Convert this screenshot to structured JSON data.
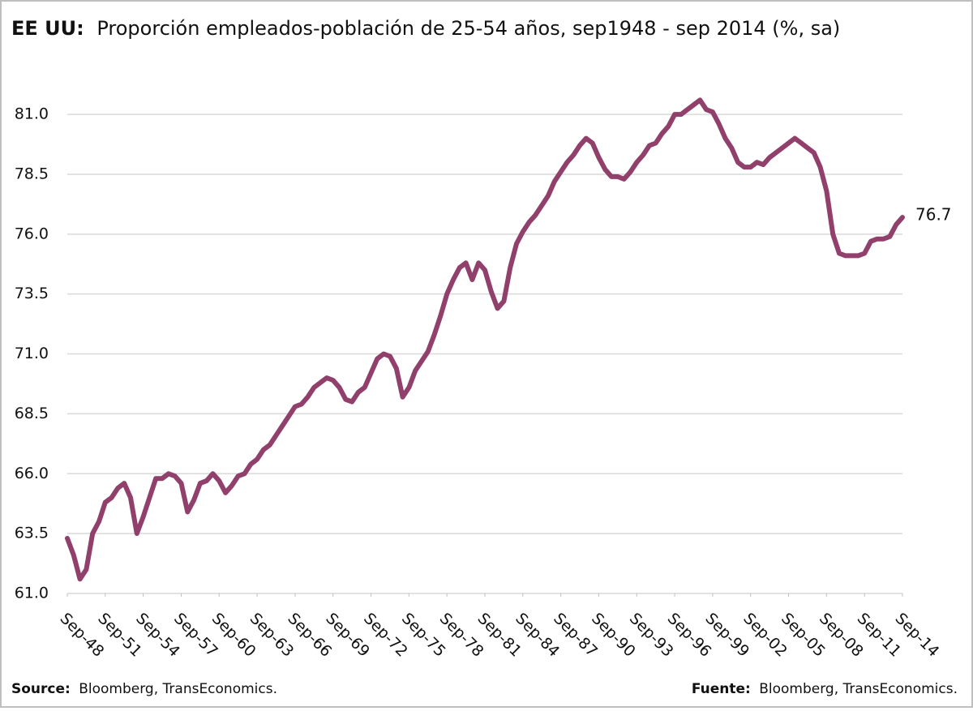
{
  "chart_data": {
    "type": "line",
    "title_prefix": "EE UU:",
    "title": "Proporción empleados-población de 25-54 años, sep1948 -  sep 2014 (%, sa)",
    "source_label": "Source:",
    "source_text": "Bloomberg, TransEconomics.",
    "fuente_label": "Fuente:",
    "fuente_text": "Bloomberg, TransEconomics.",
    "color": "#913f6b",
    "grid": true,
    "xlim": [
      "1948-09",
      "2014-09"
    ],
    "ylim": [
      61,
      83
    ],
    "yticks": [
      {
        "value": 61,
        "label": "61.0"
      },
      {
        "value": 63.5,
        "label": "63.5"
      },
      {
        "value": 66,
        "label": "66.0"
      },
      {
        "value": 68.5,
        "label": "68.5"
      },
      {
        "value": 71,
        "label": "71.0"
      },
      {
        "value": 73.5,
        "label": "73.5"
      },
      {
        "value": 76,
        "label": "76.0"
      },
      {
        "value": 78.5,
        "label": "78.5"
      },
      {
        "value": 81,
        "label": "81.0"
      }
    ],
    "xticks": [
      {
        "value": "1948-09",
        "label": "Sep-48"
      },
      {
        "value": "1951-09",
        "label": "Sep-51"
      },
      {
        "value": "1954-09",
        "label": "Sep-54"
      },
      {
        "value": "1957-09",
        "label": "Sep-57"
      },
      {
        "value": "1960-09",
        "label": "Sep-60"
      },
      {
        "value": "1963-09",
        "label": "Sep-63"
      },
      {
        "value": "1966-09",
        "label": "Sep-66"
      },
      {
        "value": "1969-09",
        "label": "Sep-69"
      },
      {
        "value": "1972-09",
        "label": "Sep-72"
      },
      {
        "value": "1975-09",
        "label": "Sep-75"
      },
      {
        "value": "1978-09",
        "label": "Sep-78"
      },
      {
        "value": "1981-09",
        "label": "Sep-81"
      },
      {
        "value": "1984-09",
        "label": "Sep-84"
      },
      {
        "value": "1987-09",
        "label": "Sep-87"
      },
      {
        "value": "1990-09",
        "label": "Sep-90"
      },
      {
        "value": "1993-09",
        "label": "Sep-93"
      },
      {
        "value": "1996-09",
        "label": "Sep-96"
      },
      {
        "value": "1999-09",
        "label": "Sep-99"
      },
      {
        "value": "2002-09",
        "label": "Sep-02"
      },
      {
        "value": "2005-09",
        "label": "Sep-05"
      },
      {
        "value": "2008-09",
        "label": "Sep-08"
      },
      {
        "value": "2011-09",
        "label": "Sep-11"
      },
      {
        "value": "2014-09",
        "label": "Sep-14"
      }
    ],
    "x": [
      "1948-09",
      "1949-03",
      "1949-09",
      "1950-03",
      "1950-09",
      "1951-03",
      "1951-09",
      "1952-03",
      "1952-09",
      "1953-03",
      "1953-09",
      "1954-03",
      "1954-09",
      "1955-03",
      "1955-09",
      "1956-03",
      "1956-09",
      "1957-03",
      "1957-09",
      "1958-03",
      "1958-09",
      "1959-03",
      "1959-09",
      "1960-03",
      "1960-09",
      "1961-03",
      "1961-09",
      "1962-03",
      "1962-09",
      "1963-03",
      "1963-09",
      "1964-03",
      "1964-09",
      "1965-03",
      "1965-09",
      "1966-03",
      "1966-09",
      "1967-03",
      "1967-09",
      "1968-03",
      "1968-09",
      "1969-03",
      "1969-09",
      "1970-03",
      "1970-09",
      "1971-03",
      "1971-09",
      "1972-03",
      "1972-09",
      "1973-03",
      "1973-09",
      "1974-03",
      "1974-09",
      "1975-03",
      "1975-09",
      "1976-03",
      "1976-09",
      "1977-03",
      "1977-09",
      "1978-03",
      "1978-09",
      "1979-03",
      "1979-09",
      "1980-03",
      "1980-09",
      "1981-03",
      "1981-09",
      "1982-03",
      "1982-09",
      "1983-03",
      "1983-09",
      "1984-03",
      "1984-09",
      "1985-03",
      "1985-09",
      "1986-03",
      "1986-09",
      "1987-03",
      "1987-09",
      "1988-03",
      "1988-09",
      "1989-03",
      "1989-09",
      "1990-03",
      "1990-09",
      "1991-03",
      "1991-09",
      "1992-03",
      "1992-09",
      "1993-03",
      "1993-09",
      "1994-03",
      "1994-09",
      "1995-03",
      "1995-09",
      "1996-03",
      "1996-09",
      "1997-03",
      "1997-09",
      "1998-03",
      "1998-09",
      "1999-03",
      "1999-09",
      "2000-03",
      "2000-09",
      "2001-03",
      "2001-09",
      "2002-03",
      "2002-09",
      "2003-03",
      "2003-09",
      "2004-03",
      "2004-09",
      "2005-03",
      "2005-09",
      "2006-03",
      "2006-09",
      "2007-03",
      "2007-09",
      "2008-03",
      "2008-09",
      "2009-03",
      "2009-09",
      "2010-03",
      "2010-09",
      "2011-03",
      "2011-09",
      "2012-03",
      "2012-09",
      "2013-03",
      "2013-09",
      "2014-03",
      "2014-09"
    ],
    "values": [
      63.3,
      62.6,
      61.6,
      62.0,
      63.5,
      64.0,
      64.8,
      65.0,
      65.4,
      65.6,
      65.0,
      63.5,
      64.2,
      65.0,
      65.8,
      65.8,
      66.0,
      65.9,
      65.6,
      64.4,
      64.9,
      65.6,
      65.7,
      66.0,
      65.7,
      65.2,
      65.5,
      65.9,
      66.0,
      66.4,
      66.6,
      67.0,
      67.2,
      67.6,
      68.0,
      68.4,
      68.8,
      68.9,
      69.2,
      69.6,
      69.8,
      70.0,
      69.9,
      69.6,
      69.1,
      69.0,
      69.4,
      69.6,
      70.2,
      70.8,
      71.0,
      70.9,
      70.4,
      69.2,
      69.6,
      70.3,
      70.7,
      71.1,
      71.8,
      72.6,
      73.5,
      74.1,
      74.6,
      74.8,
      74.1,
      74.8,
      74.5,
      73.6,
      72.9,
      73.2,
      74.6,
      75.6,
      76.1,
      76.5,
      76.8,
      77.2,
      77.6,
      78.2,
      78.6,
      79.0,
      79.3,
      79.7,
      80.0,
      79.8,
      79.2,
      78.7,
      78.4,
      78.4,
      78.3,
      78.6,
      79.0,
      79.3,
      79.7,
      79.8,
      80.2,
      80.5,
      81.0,
      81.0,
      81.2,
      81.4,
      81.6,
      81.2,
      81.1,
      80.6,
      80.0,
      79.6,
      79.0,
      78.8,
      78.8,
      79.0,
      78.9,
      79.2,
      79.4,
      79.6,
      79.8,
      80.0,
      79.8,
      79.6,
      79.4,
      78.8,
      77.8,
      76.0,
      75.2,
      75.1,
      75.1,
      75.1,
      75.2,
      75.7,
      75.8,
      75.8,
      75.9,
      76.4,
      76.7
    ]
  }
}
